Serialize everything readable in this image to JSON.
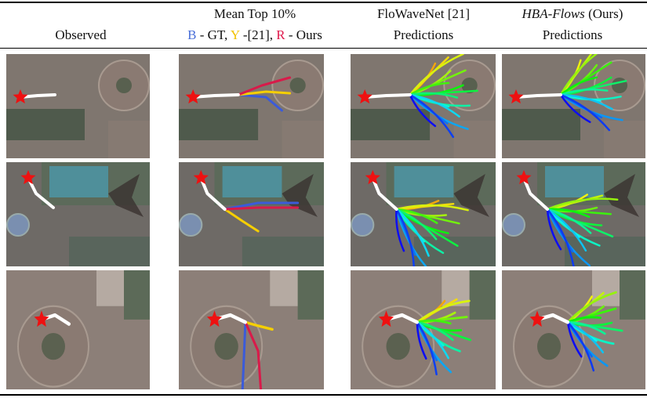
{
  "header": {
    "col1": {
      "line2": "Observed"
    },
    "col2": {
      "line1": "Mean Top 10%",
      "line2": {
        "b": "B",
        "b_text": " - GT, ",
        "y": "Y",
        "y_text": " -[21], ",
        "r": "R",
        "r_text": " - Ours"
      }
    },
    "col3": {
      "line1": "FloWaveNet [21]",
      "line2": "Predictions"
    },
    "col4": {
      "line1_italic": "HBA-Flows",
      "line1_rest": " (Ours)",
      "line2": "Predictions"
    }
  }
}
